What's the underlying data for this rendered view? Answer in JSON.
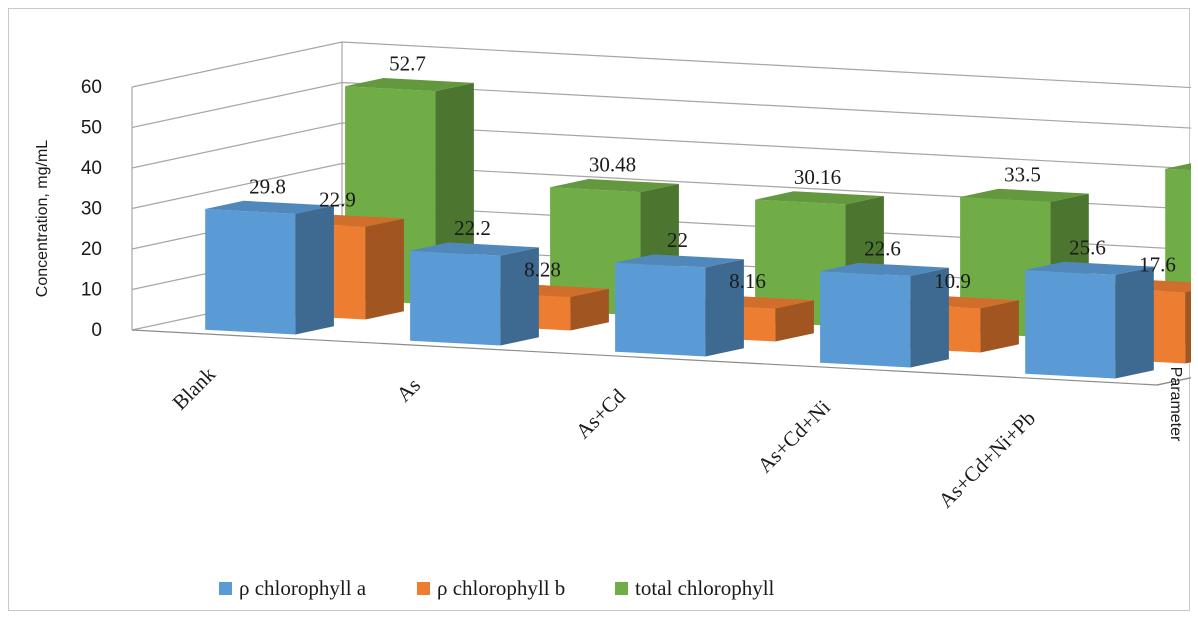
{
  "chart_data": {
    "type": "bar",
    "variant": "3d-column",
    "categories": [
      "Blank",
      "As",
      "As+Cd",
      "As+Cd+Ni",
      "As+Cd+Ni+Pb"
    ],
    "series": [
      {
        "name": "ρ chlorophyll a",
        "values": [
          29.8,
          22.2,
          22,
          22.6,
          25.6
        ],
        "color": "#5b9bd5"
      },
      {
        "name": "ρ chlorophyll b",
        "values": [
          22.9,
          8.28,
          8.16,
          10.9,
          17.6
        ],
        "color": "#ed7d31"
      },
      {
        "name": "total chlorophyll",
        "values": [
          52.7,
          30.48,
          30.16,
          33.5,
          43.2
        ],
        "color": "#70ad47"
      }
    ],
    "y_ticks": [
      "0",
      "10",
      "20",
      "30",
      "40",
      "50",
      "60"
    ],
    "ylim": [
      0,
      60
    ],
    "ylabel": "Concentration, mg/mL",
    "depth_axis_label": "Parameter",
    "grid": true,
    "legend_position": "bottom"
  }
}
